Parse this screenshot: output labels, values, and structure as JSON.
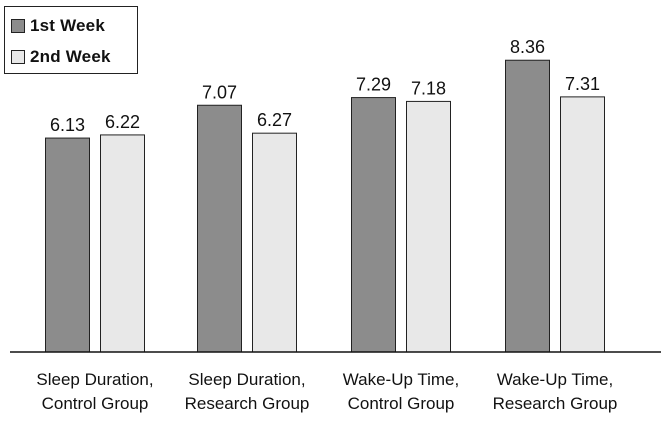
{
  "chart_data": {
    "type": "bar",
    "categories": [
      [
        "Sleep Duration,",
        "Control Group"
      ],
      [
        "Sleep Duration,",
        "Research Group"
      ],
      [
        "Wake-Up Time,",
        "Control Group"
      ],
      [
        "Wake-Up Time,",
        "Research Group"
      ]
    ],
    "series": [
      {
        "name": "1st Week",
        "color": "#8c8c8c",
        "values": [
          6.13,
          7.07,
          7.29,
          8.36
        ]
      },
      {
        "name": "2nd Week",
        "color": "#e8e8e8",
        "values": [
          6.22,
          6.27,
          7.18,
          7.31
        ]
      }
    ],
    "legend_position": "top-left",
    "grid": false,
    "ylim": [
      0,
      9
    ]
  }
}
